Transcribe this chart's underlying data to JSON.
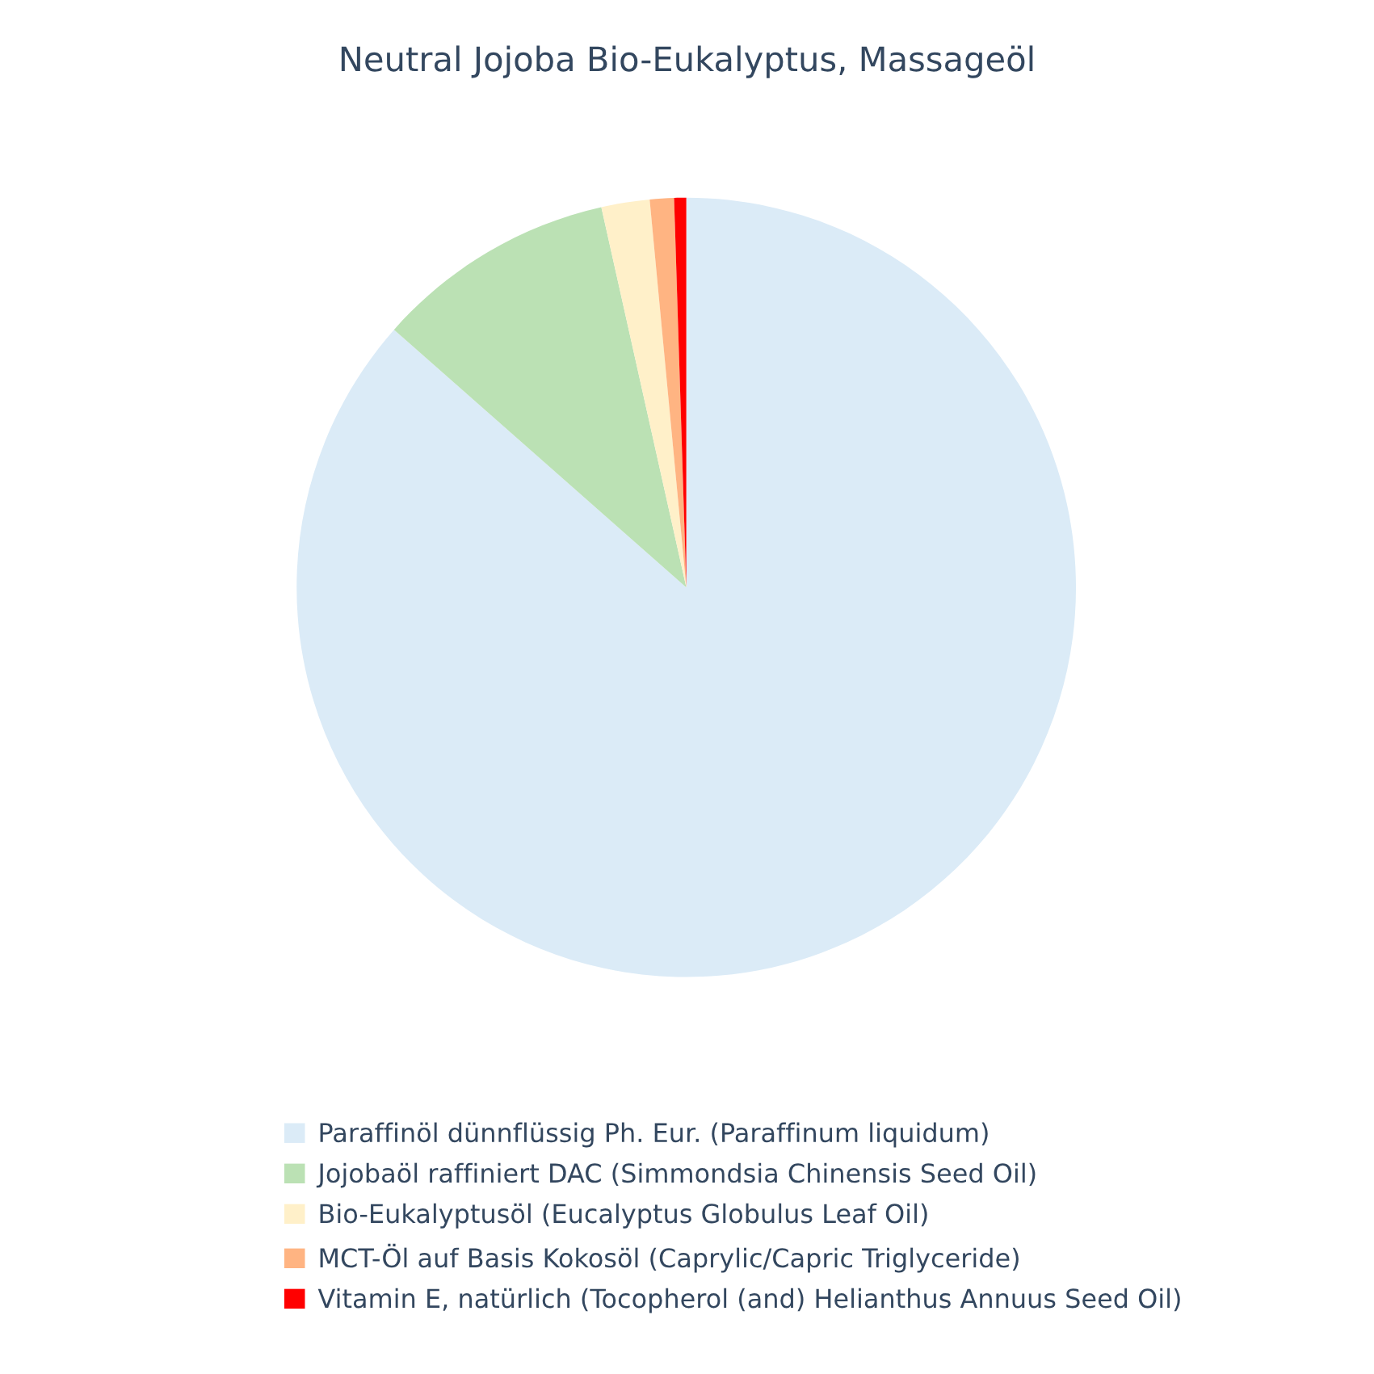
{
  "chart_data": {
    "type": "pie",
    "title": "Neutral Jojoba Bio-Eukalyptus, Massageöl",
    "categories": [
      "Paraffinöl dünnflüssig Ph. Eur. (Paraffinum liquidum)",
      "Jojobaöl raffiniert DAC (Simmondsia Chinensis Seed Oil)",
      "Bio-Eukalyptusöl (Eucalyptus Globulus Leaf Oil)",
      "MCT-Öl auf Basis Kokosöl (Caprylic/Capric Triglyceride)",
      "Vitamin E, natürlich (Tocopherol (and) Helianthus Annuus Seed Oil)"
    ],
    "values": [
      86.5,
      10,
      2,
      1,
      0.5
    ],
    "colors": [
      "#dbebf7",
      "#bbe1b4",
      "#fff0c9",
      "#ffb482",
      "#ff0000"
    ],
    "legend": "bottom"
  }
}
